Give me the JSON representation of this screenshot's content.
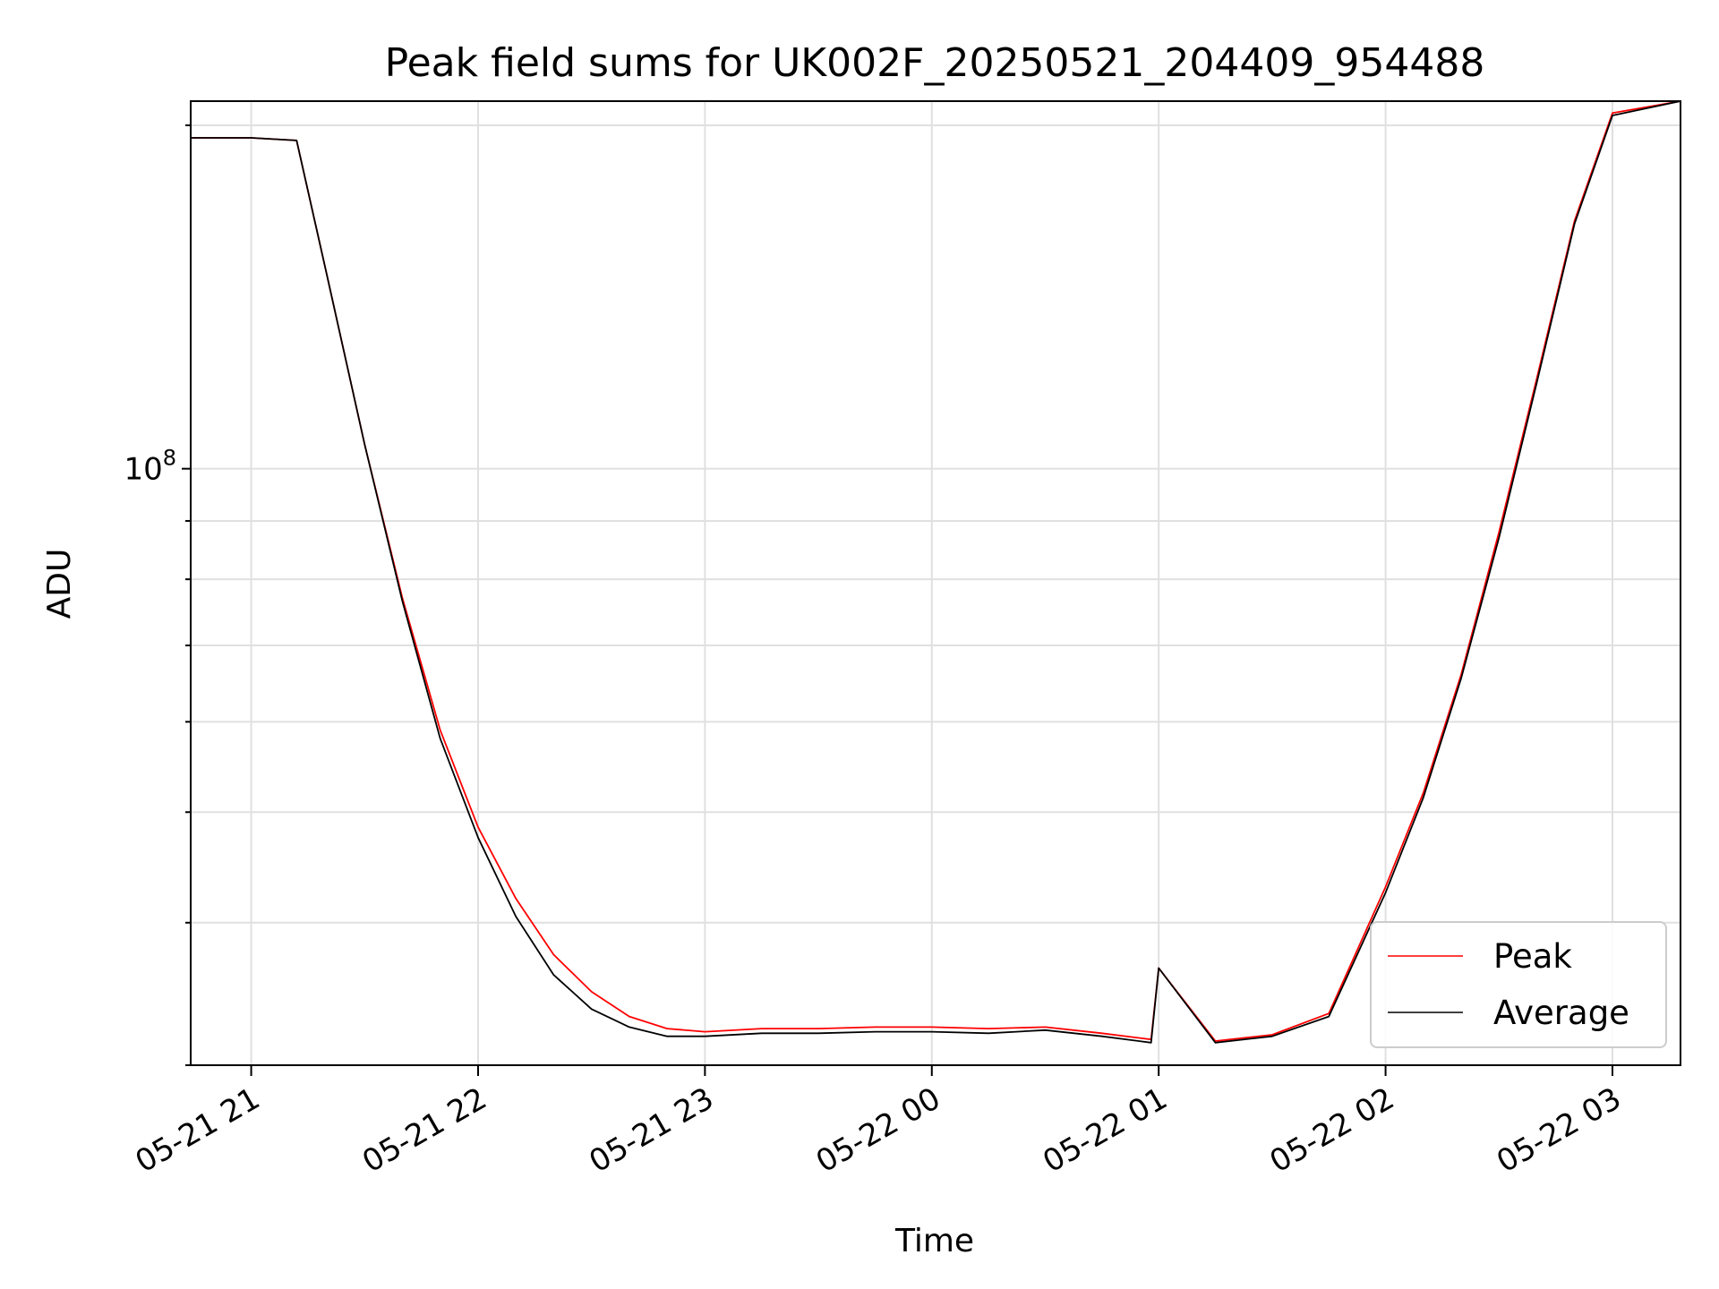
{
  "chart_data": {
    "type": "line",
    "title": "Peak field sums for UK002F_20250521_204409_954488",
    "xlabel": "Time",
    "ylabel": "ADU",
    "yscale": "log",
    "ylim": [
      30000000,
      210000000
    ],
    "xlim": [
      "2025-05-21 20:44",
      "2025-05-22 03:18"
    ],
    "grid": true,
    "legend_position": "lower-right",
    "x_ticks": [
      "05-21 21",
      "05-21 22",
      "05-21 23",
      "05-22 00",
      "05-22 01",
      "05-22 02",
      "05-22 03"
    ],
    "y_ticks": [
      {
        "base": "10",
        "exponent": "8",
        "value": 100000000
      }
    ],
    "colors": {
      "Peak": "#ff0000",
      "Average": "#000000",
      "grid": "#e0e0e0"
    },
    "series": [
      {
        "name": "Peak",
        "x": [
          "2025-05-21 20:44",
          "2025-05-21 21:00",
          "2025-05-21 21:12",
          "2025-05-21 21:20",
          "2025-05-21 21:30",
          "2025-05-21 21:40",
          "2025-05-21 21:50",
          "2025-05-21 22:00",
          "2025-05-21 22:10",
          "2025-05-21 22:20",
          "2025-05-21 22:30",
          "2025-05-21 22:40",
          "2025-05-21 22:50",
          "2025-05-21 23:00",
          "2025-05-21 23:15",
          "2025-05-21 23:30",
          "2025-05-21 23:45",
          "2025-05-22 00:00",
          "2025-05-22 00:15",
          "2025-05-22 00:30",
          "2025-05-22 00:45",
          "2025-05-22 00:58",
          "2025-05-22 01:00",
          "2025-05-22 01:15",
          "2025-05-22 01:30",
          "2025-05-22 01:45",
          "2025-05-22 02:00",
          "2025-05-22 02:10",
          "2025-05-22 02:20",
          "2025-05-22 02:30",
          "2025-05-22 02:40",
          "2025-05-22 02:50",
          "2025-05-22 03:00",
          "2025-05-22 03:18"
        ],
        "y": [
          195000000,
          195000000,
          194000000,
          148000000,
          105000000,
          77000000,
          59000000,
          48500000,
          42000000,
          37500000,
          34800000,
          33100000,
          32300000,
          32100000,
          32300000,
          32300000,
          32400000,
          32400000,
          32300000,
          32400000,
          32000000,
          31600000,
          36500000,
          31500000,
          31900000,
          33300000,
          43000000,
          52000000,
          66000000,
          88000000,
          120000000,
          165000000,
          205000000,
          210000000
        ]
      },
      {
        "name": "Average",
        "x": [
          "2025-05-21 20:44",
          "2025-05-21 21:00",
          "2025-05-21 21:12",
          "2025-05-21 21:20",
          "2025-05-21 21:30",
          "2025-05-21 21:40",
          "2025-05-21 21:50",
          "2025-05-21 22:00",
          "2025-05-21 22:10",
          "2025-05-21 22:20",
          "2025-05-21 22:30",
          "2025-05-21 22:40",
          "2025-05-21 22:50",
          "2025-05-21 23:00",
          "2025-05-21 23:15",
          "2025-05-21 23:30",
          "2025-05-21 23:45",
          "2025-05-22 00:00",
          "2025-05-22 00:15",
          "2025-05-22 00:30",
          "2025-05-22 00:45",
          "2025-05-22 00:58",
          "2025-05-22 01:00",
          "2025-05-22 01:15",
          "2025-05-22 01:30",
          "2025-05-22 01:45",
          "2025-05-22 02:00",
          "2025-05-22 02:10",
          "2025-05-22 02:20",
          "2025-05-22 02:30",
          "2025-05-22 02:40",
          "2025-05-22 02:50",
          "2025-05-22 03:00",
          "2025-05-22 03:18"
        ],
        "y": [
          195000000,
          195000000,
          194000000,
          148000000,
          105000000,
          76500000,
          58000000,
          47500000,
          40500000,
          36000000,
          33600000,
          32400000,
          31800000,
          31800000,
          32000000,
          32000000,
          32100000,
          32100000,
          32000000,
          32200000,
          31800000,
          31400000,
          36500000,
          31400000,
          31800000,
          33100000,
          42500000,
          51500000,
          65500000,
          87000000,
          119000000,
          164000000,
          204000000,
          210000000
        ]
      }
    ]
  }
}
